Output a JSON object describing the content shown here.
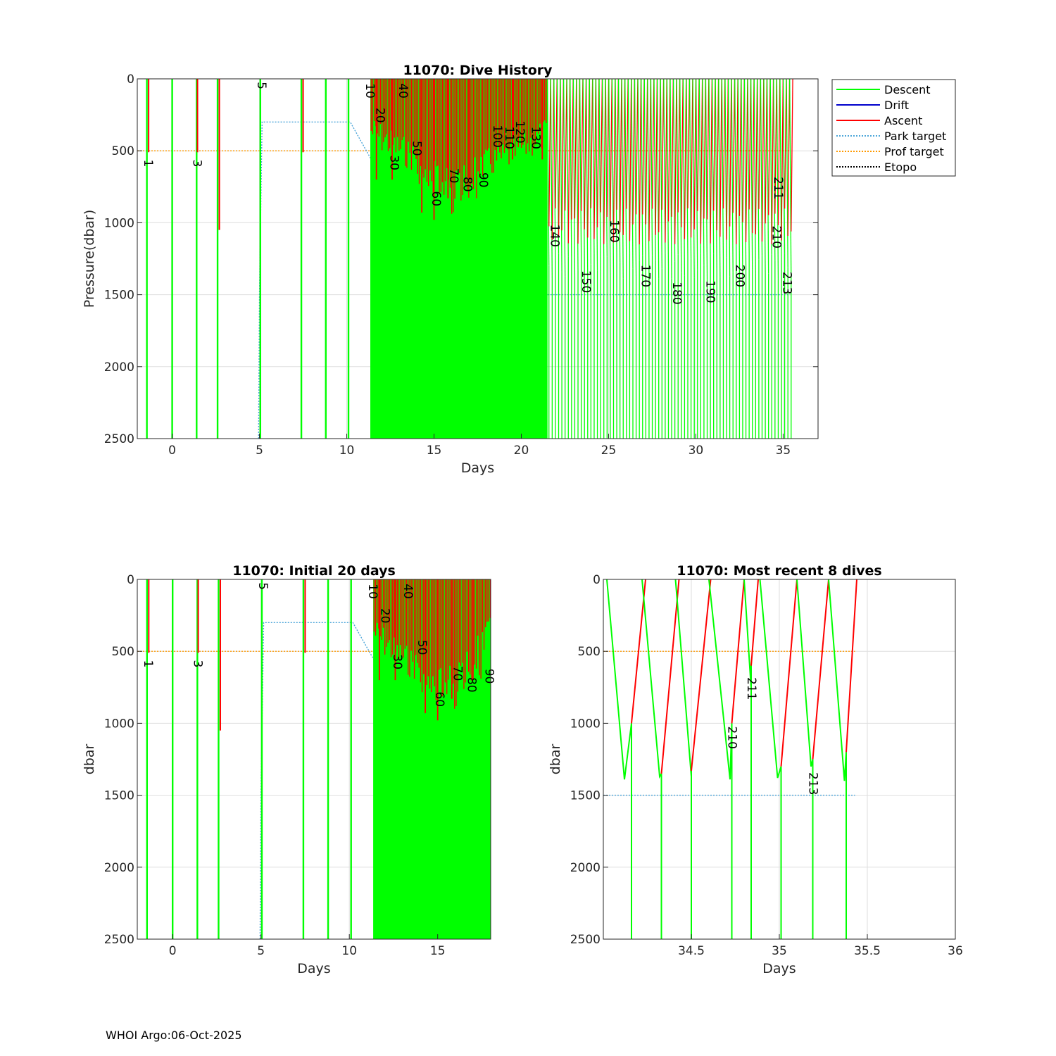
{
  "footer": "WHOI Argo:06-Oct-2025",
  "colors": {
    "descent": "#00ff00",
    "drift": "#0000cc",
    "ascent": "#ff0000",
    "park": "#4da6d9",
    "prof": "#ff9900",
    "etopo": "#000000",
    "grid": "#dedede"
  },
  "legend": {
    "descent": "Descent",
    "drift": "Drift",
    "ascent": "Ascent",
    "park": "Park target",
    "prof": "Prof target",
    "etopo": "Etopo"
  },
  "chart_data": [
    {
      "id": "main",
      "type": "line",
      "title": "11070: Dive History",
      "xlabel": "Days",
      "ylabel": "Pressure(dbar)",
      "xlim": [
        -2,
        37
      ],
      "ylim": [
        0,
        2500
      ],
      "y_reversed": true,
      "xticks": [
        0,
        5,
        10,
        15,
        20,
        25,
        30,
        35
      ],
      "yticks": [
        0,
        500,
        1000,
        1500,
        2000,
        2500
      ],
      "prof_target": [
        {
          "x": [
            -2,
            35.4
          ],
          "y": [
            500,
            500
          ]
        }
      ],
      "park_target": [
        {
          "x": [
            4.95,
            5.0,
            5.15,
            10.2,
            11.4,
            14.0,
            16.5,
            17.35,
            17.45,
            35.4
          ],
          "y": [
            2500,
            1480,
            300,
            300,
            560,
            560,
            560,
            560,
            1500,
            1500
          ]
        }
      ],
      "spikes": [
        -1.45,
        0.0,
        1.4,
        2.6,
        5.05,
        7.4,
        8.8,
        10.1
      ],
      "dense_start": 11.35,
      "dense_end": 21.5,
      "sparse_start": 21.5,
      "sparse_end": 35.4,
      "sparse_period": 0.185,
      "ascent_bursts": [
        {
          "x": 11.7,
          "top": 0,
          "bottom": 700
        },
        {
          "x": 12.6,
          "top": 0,
          "bottom": 700
        },
        {
          "x": 14.3,
          "top": 0,
          "bottom": 930
        },
        {
          "x": 15.0,
          "top": 0,
          "bottom": 980
        },
        {
          "x": 15.8,
          "top": 0,
          "bottom": 830
        },
        {
          "x": 17.0,
          "top": 0,
          "bottom": 700
        },
        {
          "x": 19.5,
          "top": 0,
          "bottom": 560
        },
        {
          "x": 21.2,
          "top": 0,
          "bottom": 560
        }
      ],
      "early_ascents": [
        {
          "x": -1.35,
          "top": 0,
          "bottom": 510
        },
        {
          "x": 1.45,
          "top": 0,
          "bottom": 510
        },
        {
          "x": 2.7,
          "top": 0,
          "bottom": 1050
        },
        {
          "x": 7.5,
          "top": 0,
          "bottom": 510
        }
      ],
      "dive_labels": [
        {
          "text": "1",
          "x": -1.4,
          "y": 560
        },
        {
          "text": "3",
          "x": 1.4,
          "y": 560
        },
        {
          "text": "5",
          "x": 5.1,
          "y": 20
        },
        {
          "text": "10",
          "x": 11.3,
          "y": 30
        },
        {
          "text": "20",
          "x": 11.9,
          "y": 200
        },
        {
          "text": "30",
          "x": 12.7,
          "y": 530
        },
        {
          "text": "40",
          "x": 13.2,
          "y": 30
        },
        {
          "text": "50",
          "x": 14.0,
          "y": 430
        },
        {
          "text": "60",
          "x": 15.1,
          "y": 780
        },
        {
          "text": "70",
          "x": 16.1,
          "y": 620
        },
        {
          "text": "80",
          "x": 16.9,
          "y": 680
        },
        {
          "text": "90",
          "x": 17.8,
          "y": 650
        },
        {
          "text": "100",
          "x": 18.6,
          "y": 320
        },
        {
          "text": "110",
          "x": 19.3,
          "y": 330
        },
        {
          "text": "120",
          "x": 19.9,
          "y": 290
        },
        {
          "text": "130",
          "x": 20.8,
          "y": 330
        },
        {
          "text": "140",
          "x": 21.9,
          "y": 1010
        },
        {
          "text": "150",
          "x": 23.7,
          "y": 1330
        },
        {
          "text": "160",
          "x": 25.3,
          "y": 980
        },
        {
          "text": "170",
          "x": 27.1,
          "y": 1290
        },
        {
          "text": "180",
          "x": 28.9,
          "y": 1410
        },
        {
          "text": "190",
          "x": 30.8,
          "y": 1400
        },
        {
          "text": "200",
          "x": 32.5,
          "y": 1290
        },
        {
          "text": "210",
          "x": 34.6,
          "y": 1020
        },
        {
          "text": "211",
          "x": 34.7,
          "y": 680
        },
        {
          "text": "213",
          "x": 35.2,
          "y": 1340
        }
      ]
    },
    {
      "id": "initial",
      "type": "line",
      "title": "11070: Initial 20 days",
      "xlabel": "Days",
      "ylabel": "dbar",
      "xlim": [
        -2,
        18
      ],
      "ylim": [
        0,
        2500
      ],
      "y_reversed": true,
      "xticks": [
        0,
        5,
        10,
        15
      ],
      "yticks": [
        0,
        500,
        1000,
        1500,
        2000,
        2500
      ],
      "prof_target": [
        {
          "x": [
            -2,
            18
          ],
          "y": [
            500,
            500
          ]
        }
      ],
      "park_target": [
        {
          "x": [
            4.95,
            5.0,
            5.15,
            10.2,
            11.4,
            14.0,
            16.5,
            17.35,
            17.45,
            18
          ],
          "y": [
            2500,
            1480,
            300,
            300,
            560,
            560,
            560,
            560,
            1500,
            1500
          ]
        }
      ],
      "spikes": [
        -1.45,
        0.0,
        1.4,
        2.6,
        5.05,
        7.4,
        8.8,
        10.1
      ],
      "dense_start": 11.35,
      "dense_end": 18,
      "ascent_bursts": [
        {
          "x": 11.7,
          "top": 0,
          "bottom": 700
        },
        {
          "x": 12.6,
          "top": 0,
          "bottom": 700
        },
        {
          "x": 14.3,
          "top": 0,
          "bottom": 930
        },
        {
          "x": 15.0,
          "top": 0,
          "bottom": 980
        },
        {
          "x": 15.8,
          "top": 0,
          "bottom": 830
        },
        {
          "x": 17.0,
          "top": 0,
          "bottom": 700
        }
      ],
      "early_ascents": [
        {
          "x": -1.35,
          "top": 0,
          "bottom": 510
        },
        {
          "x": 1.45,
          "top": 0,
          "bottom": 510
        },
        {
          "x": 2.7,
          "top": 0,
          "bottom": 1050
        },
        {
          "x": 7.5,
          "top": 0,
          "bottom": 510
        }
      ],
      "dive_labels": [
        {
          "text": "1",
          "x": -1.4,
          "y": 560
        },
        {
          "text": "3",
          "x": 1.4,
          "y": 560
        },
        {
          "text": "5",
          "x": 5.1,
          "y": 20
        },
        {
          "text": "10",
          "x": 11.3,
          "y": 30
        },
        {
          "text": "20",
          "x": 12.0,
          "y": 200
        },
        {
          "text": "30",
          "x": 12.7,
          "y": 520
        },
        {
          "text": "40",
          "x": 13.3,
          "y": 30
        },
        {
          "text": "50",
          "x": 14.1,
          "y": 420
        },
        {
          "text": "60",
          "x": 15.1,
          "y": 780
        },
        {
          "text": "70",
          "x": 16.1,
          "y": 600
        },
        {
          "text": "80",
          "x": 16.9,
          "y": 680
        },
        {
          "text": "90",
          "x": 17.9,
          "y": 620
        }
      ]
    },
    {
      "id": "recent",
      "type": "line",
      "title": "11070: Most recent 8 dives",
      "xlabel": "Days",
      "ylabel": "dbar",
      "xlim": [
        34.0,
        36.0
      ],
      "ylim": [
        0,
        2500
      ],
      "y_reversed": true,
      "xticks": [
        34.5,
        35,
        35.5,
        36
      ],
      "yticks": [
        0,
        500,
        1000,
        1500,
        2000,
        2500
      ],
      "prof_target": [
        {
          "x": [
            34.0,
            35.43
          ],
          "y": [
            500,
            500
          ]
        }
      ],
      "park_target": [
        {
          "x": [
            34.0,
            35.43
          ],
          "y": [
            1500,
            1500
          ]
        }
      ],
      "dives": [
        {
          "start": 34.02,
          "bottom_t": 34.12,
          "bottom_p": 1390,
          "turn_t": 34.16,
          "turn_p": 1000,
          "surface_t": 34.24,
          "spike_t": 34.16
        },
        {
          "start": 34.22,
          "bottom_t": 34.32,
          "bottom_p": 1370,
          "turn_t": 34.33,
          "turn_p": 1350,
          "surface_t": 34.43,
          "spike_t": 34.33
        },
        {
          "start": 34.41,
          "bottom_t": 34.5,
          "bottom_p": 1370,
          "turn_t": 34.5,
          "turn_p": 1330,
          "surface_t": 34.61,
          "spike_t": 34.5
        },
        {
          "start": 34.6,
          "bottom_t": 34.72,
          "bottom_p": 1390,
          "turn_t": 34.73,
          "turn_p": 1000,
          "surface_t": 34.8,
          "spike_t": 34.73
        },
        {
          "start": 34.8,
          "bottom_t": 34.84,
          "bottom_p": 760,
          "turn_t": 34.84,
          "turn_p": 600,
          "surface_t": 34.88,
          "spike_t": 34.84
        },
        {
          "start": 34.89,
          "bottom_t": 34.99,
          "bottom_p": 1380,
          "turn_t": 35.01,
          "turn_p": 1300,
          "surface_t": 35.1,
          "spike_t": 35.01
        },
        {
          "start": 35.1,
          "bottom_t": 35.18,
          "bottom_p": 1300,
          "turn_t": 35.19,
          "turn_p": 1250,
          "surface_t": 35.28,
          "spike_t": 35.19
        },
        {
          "start": 35.28,
          "bottom_t": 35.37,
          "bottom_p": 1400,
          "turn_t": 35.38,
          "turn_p": 1200,
          "surface_t": 35.44,
          "spike_t": 35.38
        }
      ],
      "dive_labels": [
        {
          "text": "210",
          "x": 34.73,
          "y": 1020
        },
        {
          "text": "211",
          "x": 34.84,
          "y": 680
        },
        {
          "text": "213",
          "x": 35.19,
          "y": 1340
        }
      ]
    }
  ]
}
